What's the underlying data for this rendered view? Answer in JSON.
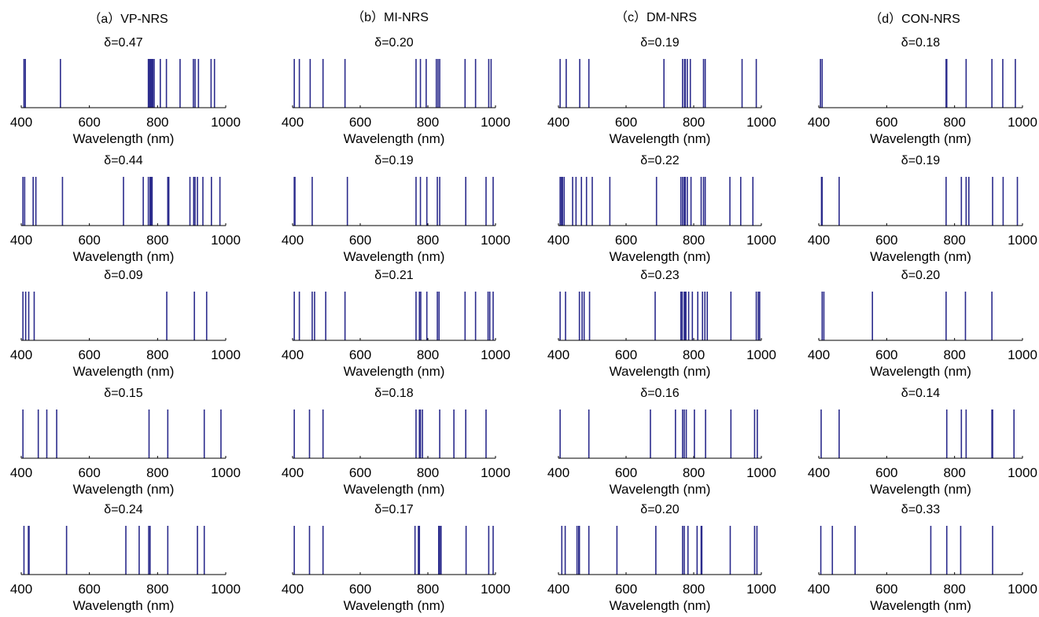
{
  "figure": {
    "columns": [
      "（a）VP-NRS",
      "（b）MI-NRS",
      "（c）DM-NRS",
      "（d）CON-NRS"
    ],
    "line_color": "#2b2b8c"
  },
  "chart_data": [
    {
      "type": "stem",
      "column": 0,
      "row": 0,
      "title": "δ=0.47",
      "xlabel": "Wavelength (nm)",
      "xlim": [
        400,
        1000
      ],
      "xticks": [
        400,
        600,
        800,
        1000
      ],
      "x": [
        408,
        412,
        515,
        773,
        776,
        779,
        782,
        784,
        786,
        790,
        808,
        826,
        866,
        905,
        910,
        920,
        957,
        967
      ]
    },
    {
      "type": "stem",
      "column": 0,
      "row": 1,
      "title": "δ=0.44",
      "xlabel": "Wavelength (nm)",
      "xlim": [
        400,
        1000
      ],
      "xticks": [
        400,
        600,
        800,
        1000
      ],
      "x": [
        405,
        410,
        435,
        443,
        521,
        700,
        758,
        773,
        778,
        781,
        784,
        830,
        833,
        895,
        906,
        910,
        917,
        933,
        958,
        983
      ]
    },
    {
      "type": "stem",
      "column": 0,
      "row": 2,
      "title": "δ=0.09",
      "xlabel": "Wavelength (nm)",
      "xlim": [
        400,
        1000
      ],
      "xticks": [
        400,
        600,
        800,
        1000
      ],
      "x": [
        405,
        413,
        422,
        438,
        827,
        908,
        944
      ]
    },
    {
      "type": "stem",
      "column": 0,
      "row": 3,
      "title": "δ=0.15",
      "xlabel": "Wavelength (nm)",
      "xlim": [
        400,
        1000
      ],
      "xticks": [
        400,
        600,
        800,
        1000
      ],
      "x": [
        405,
        450,
        475,
        504,
        775,
        830,
        937,
        986
      ]
    },
    {
      "type": "stem",
      "column": 0,
      "row": 4,
      "title": "δ=0.24",
      "xlabel": "Wavelength (nm)",
      "xlim": [
        400,
        1000
      ],
      "xticks": [
        400,
        600,
        800,
        1000
      ],
      "x": [
        408,
        421,
        423,
        533,
        707,
        746,
        774,
        778,
        830,
        917,
        937
      ]
    },
    {
      "type": "stem",
      "column": 1,
      "row": 0,
      "title": "δ=0.20",
      "xlabel": "Wavelength (nm)",
      "xlim": [
        400,
        1000
      ],
      "xticks": [
        400,
        600,
        800,
        1000
      ],
      "x": [
        405,
        420,
        452,
        490,
        555,
        765,
        778,
        795,
        825,
        830,
        835,
        910,
        941,
        980,
        987
      ]
    },
    {
      "type": "stem",
      "column": 1,
      "row": 1,
      "title": "δ=0.19",
      "xlabel": "Wavelength (nm)",
      "xlim": [
        400,
        1000
      ],
      "xticks": [
        400,
        600,
        800,
        1000
      ],
      "x": [
        405,
        407,
        458,
        562,
        765,
        778,
        797,
        828,
        835,
        912,
        972,
        993
      ]
    },
    {
      "type": "stem",
      "column": 1,
      "row": 2,
      "title": "δ=0.21",
      "xlabel": "Wavelength (nm)",
      "xlim": [
        400,
        1000
      ],
      "xticks": [
        400,
        600,
        800,
        1000
      ],
      "x": [
        405,
        420,
        458,
        465,
        498,
        555,
        765,
        775,
        779,
        797,
        828,
        833,
        910,
        941,
        978,
        983,
        993
      ]
    },
    {
      "type": "stem",
      "column": 1,
      "row": 3,
      "title": "δ=0.18",
      "xlabel": "Wavelength (nm)",
      "xlim": [
        400,
        1000
      ],
      "xticks": [
        400,
        600,
        800,
        1000
      ],
      "x": [
        405,
        450,
        490,
        765,
        775,
        778,
        784,
        835,
        877,
        912,
        972
      ]
    },
    {
      "type": "stem",
      "column": 1,
      "row": 4,
      "title": "δ=0.17",
      "xlabel": "Wavelength (nm)",
      "xlim": [
        400,
        1000
      ],
      "xticks": [
        400,
        600,
        800,
        1000
      ],
      "x": [
        405,
        450,
        490,
        762,
        772,
        775,
        832,
        835,
        839,
        913,
        980,
        993
      ]
    },
    {
      "type": "stem",
      "column": 2,
      "row": 0,
      "title": "δ=0.19",
      "xlabel": "Wavelength (nm)",
      "xlim": [
        400,
        1000
      ],
      "xticks": [
        400,
        600,
        800,
        1000
      ],
      "x": [
        405,
        423,
        463,
        490,
        712,
        767,
        773,
        775,
        781,
        790,
        829,
        834,
        943,
        985
      ]
    },
    {
      "type": "stem",
      "column": 2,
      "row": 1,
      "title": "δ=0.22",
      "xlabel": "Wavelength (nm)",
      "xlim": [
        400,
        1000
      ],
      "xticks": [
        400,
        600,
        800,
        1000
      ],
      "x": [
        405,
        409,
        412,
        417,
        442,
        452,
        468,
        483,
        500,
        552,
        690,
        762,
        767,
        772,
        775,
        781,
        792,
        822,
        829,
        834,
        907,
        939,
        975
      ]
    },
    {
      "type": "stem",
      "column": 2,
      "row": 2,
      "title": "δ=0.23",
      "xlabel": "Wavelength (nm)",
      "xlim": [
        400,
        1000
      ],
      "xticks": [
        400,
        600,
        800,
        1000
      ],
      "x": [
        405,
        421,
        462,
        470,
        476,
        492,
        686,
        762,
        766,
        772,
        775,
        777,
        785,
        796,
        812,
        826,
        833,
        840,
        910,
        985,
        991,
        995
      ]
    },
    {
      "type": "stem",
      "column": 2,
      "row": 3,
      "title": "δ=0.16",
      "xlabel": "Wavelength (nm)",
      "xlim": [
        400,
        1000
      ],
      "xticks": [
        400,
        600,
        800,
        1000
      ],
      "x": [
        405,
        490,
        672,
        746,
        767,
        772,
        778,
        802,
        835,
        910,
        980,
        988
      ]
    },
    {
      "type": "stem",
      "column": 2,
      "row": 4,
      "title": "δ=0.20",
      "xlabel": "Wavelength (nm)",
      "xlim": [
        400,
        1000
      ],
      "xticks": [
        400,
        600,
        800,
        1000
      ],
      "x": [
        410,
        420,
        455,
        460,
        462,
        490,
        573,
        688,
        767,
        772,
        783,
        810,
        822,
        824,
        908,
        980,
        987
      ]
    },
    {
      "type": "stem",
      "column": 3,
      "row": 0,
      "title": "δ=0.18",
      "xlabel": "Wavelength (nm)",
      "xlim": [
        400,
        1000
      ],
      "xticks": [
        400,
        600,
        800,
        1000
      ],
      "x": [
        405,
        410,
        775,
        777,
        834,
        910,
        942,
        979
      ]
    },
    {
      "type": "stem",
      "column": 3,
      "row": 1,
      "title": "δ=0.19",
      "xlabel": "Wavelength (nm)",
      "xlim": [
        400,
        1000
      ],
      "xticks": [
        400,
        600,
        800,
        1000
      ],
      "x": [
        408,
        410,
        460,
        775,
        820,
        834,
        842,
        912,
        943,
        985
      ]
    },
    {
      "type": "stem",
      "column": 3,
      "row": 2,
      "title": "δ=0.20",
      "xlabel": "Wavelength (nm)",
      "xlim": [
        400,
        1000
      ],
      "xticks": [
        400,
        600,
        800,
        1000
      ],
      "x": [
        410,
        415,
        558,
        775,
        832,
        910
      ]
    },
    {
      "type": "stem",
      "column": 3,
      "row": 3,
      "title": "δ=0.14",
      "xlabel": "Wavelength (nm)",
      "xlim": [
        400,
        1000
      ],
      "xticks": [
        400,
        600,
        800,
        1000
      ],
      "x": [
        407,
        460,
        777,
        820,
        834,
        910,
        912,
        975
      ]
    },
    {
      "type": "stem",
      "column": 3,
      "row": 4,
      "title": "δ=0.33",
      "xlabel": "Wavelength (nm)",
      "xlim": [
        400,
        1000
      ],
      "xticks": [
        400,
        600,
        800,
        1000
      ],
      "x": [
        406,
        440,
        507,
        730,
        777,
        818,
        912
      ]
    }
  ]
}
